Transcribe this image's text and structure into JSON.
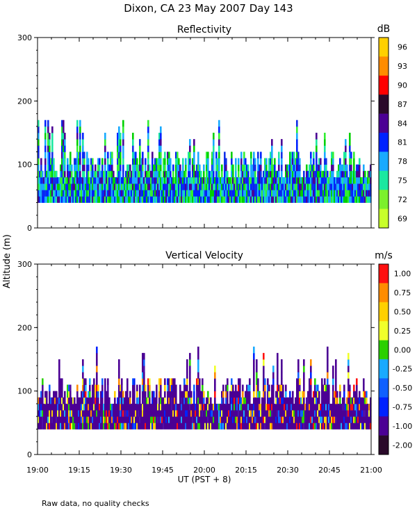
{
  "page": {
    "title": "Dixon, CA 23 May 2007  Day 143",
    "footer_note": "Raw data, no quality checks",
    "y_axis_label": "Altitude (m)",
    "x_axis_label": "UT  (PST + 8)"
  },
  "chart_data": [
    {
      "type": "heatmap",
      "title": "Reflectivity",
      "ylabel": "Altitude (m)",
      "xlabel": "",
      "xlim_minutes": [
        0,
        120
      ],
      "ylim": [
        0,
        300
      ],
      "yticks": [
        0,
        100,
        200,
        300
      ],
      "data_altitude_range": [
        40,
        180
      ],
      "data_time_range": [
        0,
        120
      ],
      "colorbar": {
        "unit": "dB",
        "labels": [
          "96",
          "93",
          "90",
          "87",
          "84",
          "81",
          "78",
          "75",
          "72",
          "69"
        ],
        "colors": [
          "#ffd000",
          "#ff8c00",
          "#ff0000",
          "#2a0a2a",
          "#4b0094",
          "#0022ff",
          "#19aaff",
          "#1be8a0",
          "#7cf02c",
          "#c8ff2a"
        ]
      },
      "palette": [
        "#00d000",
        "#33ee33",
        "#1be8a0",
        "#19aaff",
        "#19aaff",
        "#1030e8",
        "#0022ff",
        "#4b0094"
      ]
    },
    {
      "type": "heatmap",
      "title": "Vertical Velocity",
      "ylabel": "Altitude (m)",
      "xlabel": "UT  (PST + 8)",
      "xlim_minutes": [
        0,
        120
      ],
      "ylim": [
        0,
        300
      ],
      "yticks": [
        0,
        100,
        200,
        300
      ],
      "xticks": [
        "19:00",
        "19:15",
        "19:30",
        "19:45",
        "20:00",
        "20:15",
        "20:30",
        "20:45",
        "21:00"
      ],
      "data_altitude_range": [
        40,
        180
      ],
      "data_time_range": [
        0,
        120
      ],
      "colorbar": {
        "unit": "m/s",
        "labels": [
          "1.00",
          "0.75",
          "0.50",
          "0.25",
          "0.00",
          "-0.25",
          "-0.50",
          "-0.75",
          "-1.00",
          "-2.00"
        ],
        "colors": [
          "#ff1010",
          "#ff8c00",
          "#ffd000",
          "#f0ff2a",
          "#2ad000",
          "#19aaff",
          "#1060ff",
          "#0022ff",
          "#4b0094",
          "#2a0a2a"
        ]
      },
      "palette": [
        "#4b0094",
        "#4b0094",
        "#5010a8",
        "#0022ff",
        "#1060ff",
        "#19aaff",
        "#2ad000",
        "#f0ff2a",
        "#ffd000",
        "#ff8c00",
        "#ff1010"
      ]
    }
  ]
}
